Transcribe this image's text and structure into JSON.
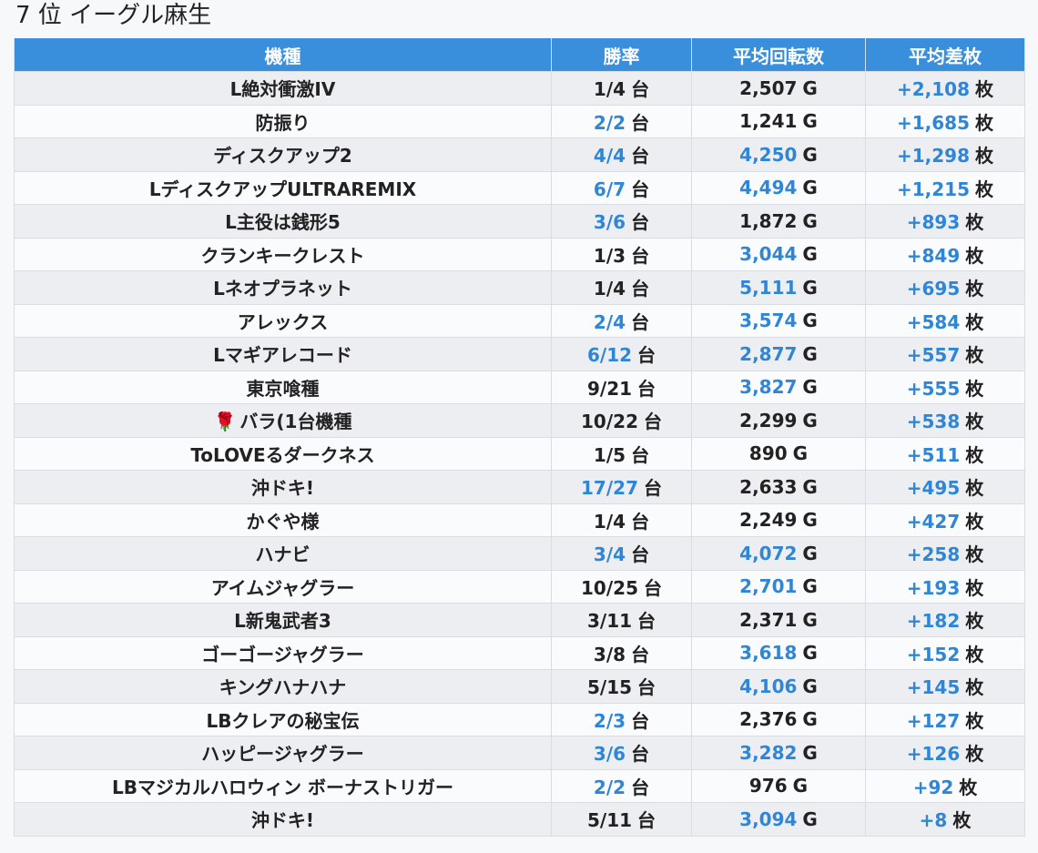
{
  "header": {
    "title": "7 位 イーグル麻生"
  },
  "columns": [
    "機種",
    "勝率",
    "平均回転数",
    "平均差枚"
  ],
  "rows": [
    {
      "name": "L絶対衝激IV",
      "icon": "",
      "rate": "1/4",
      "rate_highlight": false,
      "spins": "2,507",
      "spins_highlight": false,
      "diff": "+2,108",
      "diff_highlight": true
    },
    {
      "name": "防振り",
      "icon": "",
      "rate": "2/2",
      "rate_highlight": true,
      "spins": "1,241",
      "spins_highlight": false,
      "diff": "+1,685",
      "diff_highlight": true
    },
    {
      "name": "ディスクアップ2",
      "icon": "",
      "rate": "4/4",
      "rate_highlight": true,
      "spins": "4,250",
      "spins_highlight": true,
      "diff": "+1,298",
      "diff_highlight": true
    },
    {
      "name": "LディスクアップULTRAREMIX",
      "icon": "",
      "rate": "6/7",
      "rate_highlight": true,
      "spins": "4,494",
      "spins_highlight": true,
      "diff": "+1,215",
      "diff_highlight": true
    },
    {
      "name": "L主役は銭形5",
      "icon": "",
      "rate": "3/6",
      "rate_highlight": true,
      "spins": "1,872",
      "spins_highlight": false,
      "diff": "+893",
      "diff_highlight": true
    },
    {
      "name": "クランキークレスト",
      "icon": "",
      "rate": "1/3",
      "rate_highlight": false,
      "spins": "3,044",
      "spins_highlight": true,
      "diff": "+849",
      "diff_highlight": true
    },
    {
      "name": "Lネオプラネット",
      "icon": "",
      "rate": "1/4",
      "rate_highlight": false,
      "spins": "5,111",
      "spins_highlight": true,
      "diff": "+695",
      "diff_highlight": true
    },
    {
      "name": "アレックス",
      "icon": "",
      "rate": "2/4",
      "rate_highlight": true,
      "spins": "3,574",
      "spins_highlight": true,
      "diff": "+584",
      "diff_highlight": true
    },
    {
      "name": "Lマギアレコード",
      "icon": "",
      "rate": "6/12",
      "rate_highlight": true,
      "spins": "2,877",
      "spins_highlight": true,
      "diff": "+557",
      "diff_highlight": true
    },
    {
      "name": "東京喰種",
      "icon": "",
      "rate": "9/21",
      "rate_highlight": false,
      "spins": "3,827",
      "spins_highlight": true,
      "diff": "+555",
      "diff_highlight": true
    },
    {
      "name": "バラ(1台機種",
      "icon": "🌹",
      "rate": "10/22",
      "rate_highlight": false,
      "spins": "2,299",
      "spins_highlight": false,
      "diff": "+538",
      "diff_highlight": true
    },
    {
      "name": "ToLOVEるダークネス",
      "icon": "",
      "rate": "1/5",
      "rate_highlight": false,
      "spins": "890",
      "spins_highlight": false,
      "diff": "+511",
      "diff_highlight": true
    },
    {
      "name": "沖ドキ!",
      "icon": "",
      "rate": "17/27",
      "rate_highlight": true,
      "spins": "2,633",
      "spins_highlight": false,
      "diff": "+495",
      "diff_highlight": true
    },
    {
      "name": "かぐや様",
      "icon": "",
      "rate": "1/4",
      "rate_highlight": false,
      "spins": "2,249",
      "spins_highlight": false,
      "diff": "+427",
      "diff_highlight": true
    },
    {
      "name": "ハナビ",
      "icon": "",
      "rate": "3/4",
      "rate_highlight": true,
      "spins": "4,072",
      "spins_highlight": true,
      "diff": "+258",
      "diff_highlight": true
    },
    {
      "name": "アイムジャグラー",
      "icon": "",
      "rate": "10/25",
      "rate_highlight": false,
      "spins": "2,701",
      "spins_highlight": true,
      "diff": "+193",
      "diff_highlight": true
    },
    {
      "name": "L新鬼武者3",
      "icon": "",
      "rate": "3/11",
      "rate_highlight": false,
      "spins": "2,371",
      "spins_highlight": false,
      "diff": "+182",
      "diff_highlight": true
    },
    {
      "name": "ゴーゴージャグラー",
      "icon": "",
      "rate": "3/8",
      "rate_highlight": false,
      "spins": "3,618",
      "spins_highlight": true,
      "diff": "+152",
      "diff_highlight": true
    },
    {
      "name": "キングハナハナ",
      "icon": "",
      "rate": "5/15",
      "rate_highlight": false,
      "spins": "4,106",
      "spins_highlight": true,
      "diff": "+145",
      "diff_highlight": true
    },
    {
      "name": "LBクレアの秘宝伝",
      "icon": "",
      "rate": "2/3",
      "rate_highlight": true,
      "spins": "2,376",
      "spins_highlight": false,
      "diff": "+127",
      "diff_highlight": true
    },
    {
      "name": "ハッピージャグラー",
      "icon": "",
      "rate": "3/6",
      "rate_highlight": true,
      "spins": "3,282",
      "spins_highlight": true,
      "diff": "+126",
      "diff_highlight": true
    },
    {
      "name": "LBマジカルハロウィン ボーナストリガー",
      "icon": "",
      "rate": "2/2",
      "rate_highlight": true,
      "spins": "976",
      "spins_highlight": false,
      "diff": "+92",
      "diff_highlight": true
    },
    {
      "name": "沖ドキ!",
      "icon": "",
      "rate": "5/11",
      "rate_highlight": false,
      "spins": "3,094",
      "spins_highlight": true,
      "diff": "+8",
      "diff_highlight": true
    }
  ],
  "units": {
    "rate": "台",
    "spins": "G",
    "diff": "枚"
  },
  "colors": {
    "header_bg": "#3a8fdc",
    "highlight": "#2f86d6",
    "row_odd": "#eceef1",
    "row_even": "#fafbfc"
  }
}
